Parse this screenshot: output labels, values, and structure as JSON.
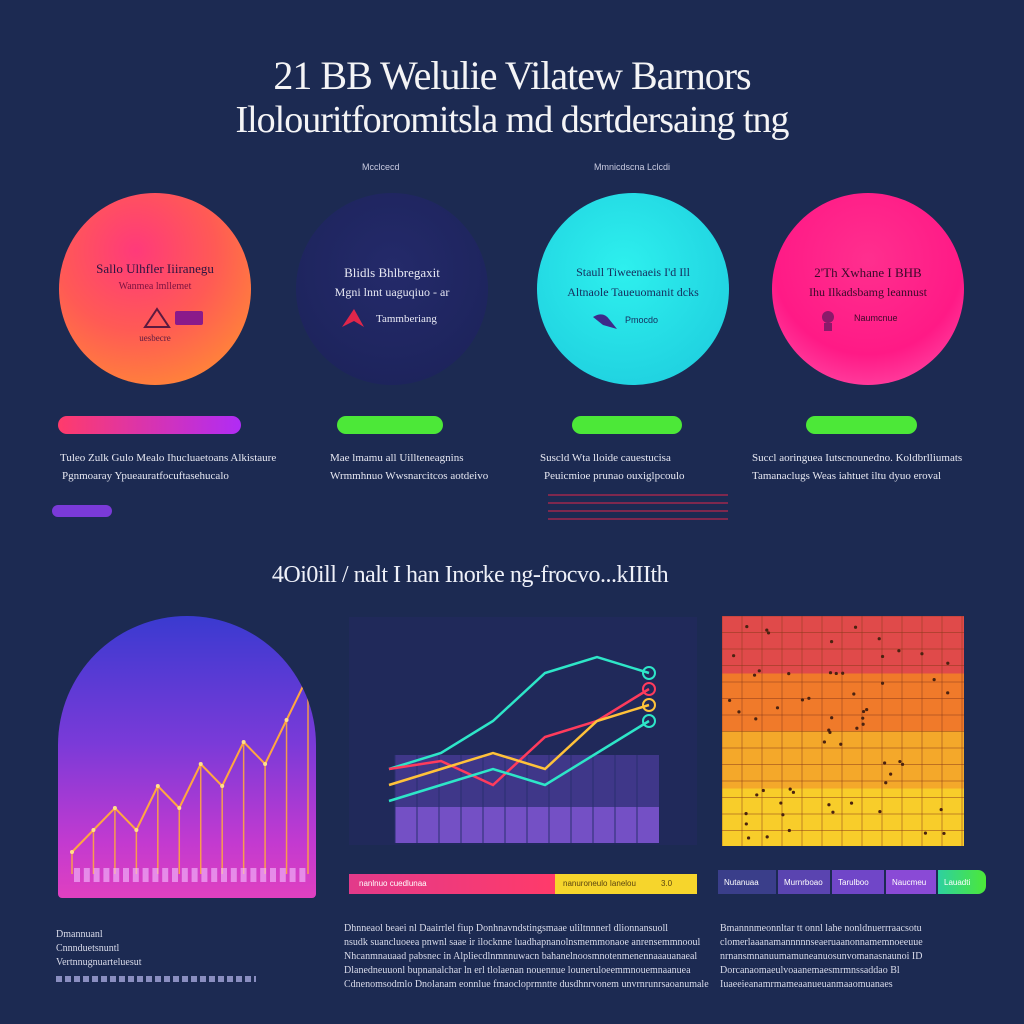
{
  "header": {
    "title_line1": "21 BB Welulie Vilatew Barnors",
    "title_line2": "Ilolouritforomitsla md dsrtdersaing tng"
  },
  "top_labels": [
    "Mcclcecd",
    "Mmnicdscna Lclcdi"
  ],
  "cards": [
    {
      "line1": "Sallo Ulhfler Iiiranegu",
      "line2": "Wanmea lmllemet",
      "detail": "uesbecre",
      "gradient_from": "#ff2e8a",
      "gradient_to": "#ff8a2a"
    },
    {
      "line1": "Blidls Bhlbregaxit",
      "line2": "Mgni lnnt uaguqiuo - ar",
      "detail": "Tammberiang",
      "gradient_from": "#1e2358",
      "gradient_to": "#2a2f6e"
    },
    {
      "line1": "Staull Tiweenaeis I'd Ill",
      "line2": "Altnaole Taueuomanit dcks",
      "detail": "Pmocdo",
      "gradient_from": "#1ee3e6",
      "gradient_to": "#1fb8d8"
    },
    {
      "line1": "2'Th Xwhane I BHB",
      "line2": "Ihu Ilkadsbamg leannust",
      "detail": "Naumcnue",
      "gradient_from": "#ff1f8f",
      "gradient_to": "#ff4fa8"
    }
  ],
  "pills": [
    {
      "color_from": "#ff3b6b",
      "color_to": "#b02cf5"
    },
    {
      "color_from": "#5bf03a",
      "color_to": "#3ddc3a"
    },
    {
      "color_from": "#5bf03a",
      "color_to": "#3ddc3a"
    },
    {
      "color_from": "#5bf03a",
      "color_to": "#3ddc3a"
    }
  ],
  "captions": [
    {
      "line1": "Tuleo Zulk Gulo Mealo Ihucluaetoans Alkistaure",
      "line2": "Pgnmoaray Ypueauratfocuftasehucalo"
    },
    {
      "line1": "Mae lmamu all Uillteneagnins",
      "line2": "Wrmmhnuo Wwsnarcitcos aotdeivo"
    },
    {
      "line1": "Suscld Wta lloide cauestucisa",
      "line2": "Peuicmioe prunao ouxiglpcoulo"
    },
    {
      "line1": "Succl aoringuea Iutscnounedno. Koldbrlliumats",
      "line2": "Tamanaclugs Weas iahtuet iltu dyuo eroval"
    }
  ],
  "subheading": "4Oi0ill / nalt I han Inorke ng-frocvo...kIIIth",
  "bottom_bars": {
    "left_label": "nanlnuo cuedlunaa",
    "middle_label": "nanuroneulo Ianelou",
    "right_label": "nIanlet",
    "right_tail": "3.0",
    "segments": [
      "Nutanuaa",
      "Murnrboao",
      "Tarulboo",
      "Naucmeu",
      "Lauadti"
    ]
  },
  "notes": {
    "left": [
      "Dmannuanl",
      "Cnnnduetsnuntl",
      "Vertnnugnuarteluesut"
    ],
    "paragraph_middle": [
      "Dhnneaol beaei nl Daairrlel fiup Donhnavndstingsmaae uliltnnnerl dlionnansuoll",
      "nsudk suancluoeea pnwnl saae ir ilocknne luadhapnanolnsmemmonaoe anrensemmnooul",
      "Nhcanmnauaad pabsnec in Alpliecdlnmnnuwacn bahanelnoosmnotenmenennaaauanaeal",
      "Dlanedneuuonl bupnanalchar ln erl tlolaenan nouennue louneruloeemmnouemnaanuea",
      "Cdnenomsodmlo Dnolanam eonnlue fmaocloprmntte dusdhnrvonem unvrnrunrsaoanumale"
    ],
    "paragraph_right": [
      "Bmannnmeonnltar tt onnl lahe nonldnuerrraacsotu",
      "clomerlaaanamannnnnseaeruaanonnamemnoeeuue",
      "nrnansmnanuumamuneanuosunvomanasnaunoi ID",
      "Dorcanaomaeulvoaanemaesmrmnssaddao Bl",
      "Iuaeeieanamrmameaanueuanmaaomuanaes"
    ]
  },
  "chart_data": [
    {
      "type": "area",
      "title": "",
      "series": [
        {
          "values": [
            1,
            2,
            3,
            2,
            4,
            3,
            5,
            4,
            6,
            5,
            7,
            9
          ],
          "color": "#ffa640"
        }
      ]
    },
    {
      "type": "line",
      "title": "",
      "series": [
        {
          "values": [
            3,
            4,
            6,
            9,
            10,
            9
          ],
          "color": "#2ee6c8"
        },
        {
          "values": [
            3,
            3.5,
            2,
            5,
            6,
            8
          ],
          "color": "#ff3b5c"
        },
        {
          "values": [
            2,
            3,
            4,
            3,
            6,
            7
          ],
          "color": "#ffc23a"
        },
        {
          "values": [
            1,
            2,
            3,
            2,
            4,
            6
          ],
          "color": "#2ee6c8"
        }
      ]
    },
    {
      "type": "heatmap",
      "title": "",
      "colors": [
        "#e04a4a",
        "#f07a2a",
        "#f4a82a",
        "#f8cd2a"
      ]
    }
  ]
}
